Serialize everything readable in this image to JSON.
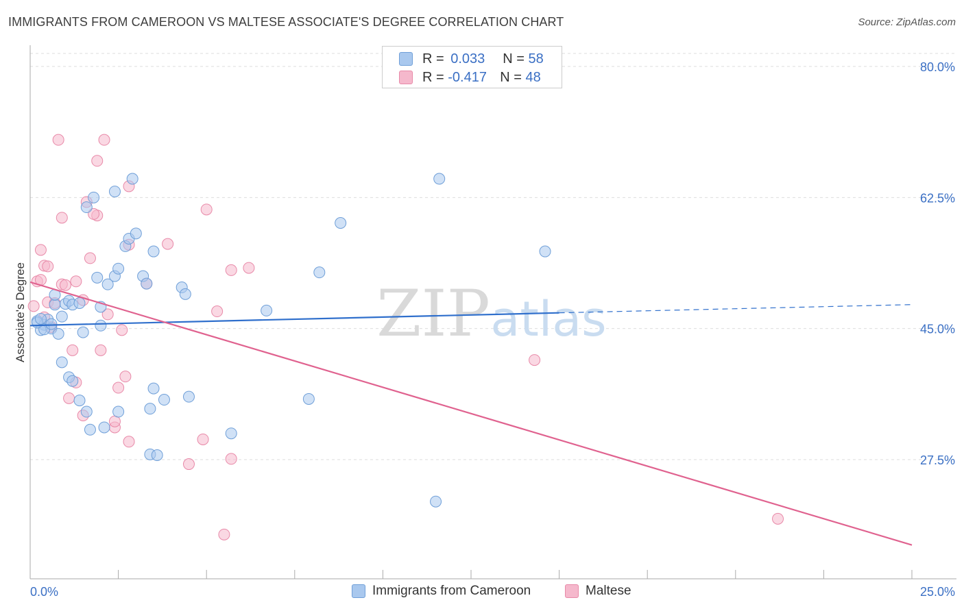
{
  "header": {
    "title": "IMMIGRANTS FROM CAMEROON VS MALTESE ASSOCIATE'S DEGREE CORRELATION CHART",
    "source": "Source: ZipAtlas.com"
  },
  "watermark": {
    "zip": "ZIP",
    "atlas": "atlas"
  },
  "legend_top": {
    "rows": [
      {
        "r_label": "R =",
        "r_value": "0.033",
        "n_label": "N =",
        "n_value": "58"
      },
      {
        "r_label": "R =",
        "r_value": "-0.417",
        "n_label": "N =",
        "n_value": "48"
      }
    ]
  },
  "legend_bottom": {
    "items": [
      "Immigrants from Cameroon",
      "Maltese"
    ]
  },
  "colors": {
    "blue_fill": "#a9c8ee",
    "blue_stroke": "#6f9fd8",
    "blue_line": "#2f6fcc",
    "pink_fill": "#f5b8cc",
    "pink_stroke": "#e889a8",
    "pink_line": "#e0628f",
    "tick_text": "#3a6fc4",
    "grid": "#dddddd"
  },
  "chart_data": {
    "type": "scatter",
    "title": "IMMIGRANTS FROM CAMEROON VS MALTESE ASSOCIATE'S DEGREE CORRELATION CHART",
    "xlabel": "",
    "ylabel": "Associate's Degree",
    "xlim": [
      0,
      25
    ],
    "ylim": [
      10,
      82
    ],
    "x_tick_labels": [
      "0.0%",
      "25.0%"
    ],
    "y_ticks": [
      27.5,
      45.0,
      62.5,
      80.0
    ],
    "y_tick_labels": [
      "27.5%",
      "45.0%",
      "62.5%",
      "80.0%"
    ],
    "grid": true,
    "legend_placement": "top-center and bottom",
    "series": [
      {
        "name": "Immigrants from Cameroon",
        "r": 0.033,
        "n": 58,
        "trend": {
          "x": [
            0.0,
            15.0
          ],
          "y": [
            45.4,
            47.1
          ],
          "dashed_to": [
            25.0,
            48.2
          ]
        },
        "points": [
          [
            0.2,
            46.0
          ],
          [
            0.4,
            45.5
          ],
          [
            0.3,
            44.8
          ],
          [
            0.5,
            46.2
          ],
          [
            0.6,
            45.0
          ],
          [
            0.8,
            44.3
          ],
          [
            0.4,
            44.9
          ],
          [
            0.9,
            46.6
          ],
          [
            0.7,
            48.2
          ],
          [
            0.7,
            49.5
          ],
          [
            1.0,
            48.3
          ],
          [
            1.1,
            48.7
          ],
          [
            1.2,
            48.2
          ],
          [
            1.4,
            48.4
          ],
          [
            0.9,
            40.5
          ],
          [
            1.1,
            38.5
          ],
          [
            1.2,
            38.0
          ],
          [
            1.4,
            35.4
          ],
          [
            1.6,
            33.9
          ],
          [
            1.7,
            31.5
          ],
          [
            1.5,
            44.5
          ],
          [
            1.9,
            51.8
          ],
          [
            2.0,
            47.9
          ],
          [
            2.0,
            45.4
          ],
          [
            2.2,
            50.9
          ],
          [
            2.4,
            52.0
          ],
          [
            2.5,
            53.0
          ],
          [
            1.6,
            61.2
          ],
          [
            1.8,
            62.5
          ],
          [
            2.4,
            63.3
          ],
          [
            2.9,
            65.0
          ],
          [
            2.7,
            56.0
          ],
          [
            2.8,
            57.0
          ],
          [
            3.0,
            57.7
          ],
          [
            3.2,
            52.0
          ],
          [
            3.3,
            51.0
          ],
          [
            3.5,
            55.3
          ],
          [
            3.5,
            37.0
          ],
          [
            3.4,
            34.3
          ],
          [
            3.8,
            35.5
          ],
          [
            4.5,
            35.9
          ],
          [
            2.5,
            33.9
          ],
          [
            2.1,
            31.8
          ],
          [
            3.4,
            28.2
          ],
          [
            3.6,
            28.1
          ],
          [
            4.3,
            50.5
          ],
          [
            4.4,
            49.6
          ],
          [
            5.7,
            31.0
          ],
          [
            6.7,
            47.4
          ],
          [
            7.9,
            35.6
          ],
          [
            8.2,
            52.5
          ],
          [
            8.8,
            59.1
          ],
          [
            11.5,
            21.9
          ],
          [
            11.6,
            65.0
          ],
          [
            14.6,
            55.3
          ],
          [
            0.2,
            45.8
          ],
          [
            0.3,
            46.3
          ],
          [
            0.6,
            45.6
          ]
        ]
      },
      {
        "name": "Maltese",
        "r": -0.417,
        "n": 48,
        "trend": {
          "x": [
            0.0,
            25.0
          ],
          "y": [
            51.2,
            16.1
          ]
        },
        "points": [
          [
            0.1,
            48.0
          ],
          [
            0.2,
            51.3
          ],
          [
            0.3,
            55.5
          ],
          [
            0.3,
            51.5
          ],
          [
            0.4,
            53.4
          ],
          [
            0.5,
            53.3
          ],
          [
            0.5,
            48.5
          ],
          [
            0.4,
            46.5
          ],
          [
            0.6,
            45.2
          ],
          [
            0.7,
            48.4
          ],
          [
            0.8,
            70.2
          ],
          [
            0.9,
            59.8
          ],
          [
            0.9,
            50.9
          ],
          [
            1.0,
            50.8
          ],
          [
            1.2,
            42.1
          ],
          [
            1.1,
            35.7
          ],
          [
            1.3,
            37.8
          ],
          [
            1.3,
            51.3
          ],
          [
            1.5,
            48.8
          ],
          [
            1.5,
            33.4
          ],
          [
            1.6,
            61.9
          ],
          [
            1.7,
            54.4
          ],
          [
            1.9,
            60.1
          ],
          [
            1.8,
            60.3
          ],
          [
            1.9,
            67.4
          ],
          [
            2.0,
            42.1
          ],
          [
            2.1,
            70.2
          ],
          [
            2.2,
            46.9
          ],
          [
            2.4,
            31.8
          ],
          [
            2.4,
            32.6
          ],
          [
            2.5,
            37.1
          ],
          [
            2.6,
            44.8
          ],
          [
            2.7,
            38.6
          ],
          [
            2.8,
            64.0
          ],
          [
            2.8,
            56.2
          ],
          [
            2.8,
            29.9
          ],
          [
            3.3,
            51.0
          ],
          [
            3.9,
            56.3
          ],
          [
            4.5,
            26.9
          ],
          [
            4.9,
            30.2
          ],
          [
            5.0,
            60.9
          ],
          [
            5.3,
            47.3
          ],
          [
            5.5,
            17.5
          ],
          [
            5.7,
            52.8
          ],
          [
            5.7,
            27.6
          ],
          [
            6.2,
            53.1
          ],
          [
            14.3,
            40.8
          ],
          [
            21.2,
            19.6
          ]
        ]
      }
    ]
  }
}
